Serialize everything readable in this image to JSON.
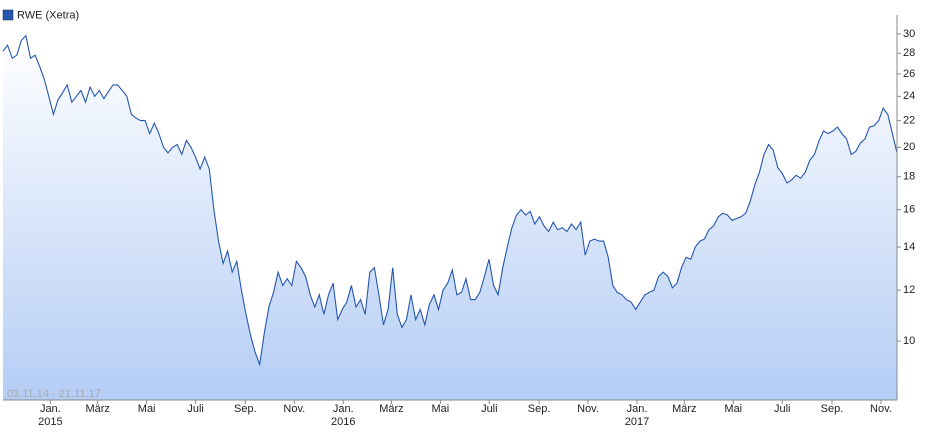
{
  "chart_data": {
    "type": "line",
    "log_scale": true,
    "range_label": "03.11.14 - 21.11.17",
    "xlim": [
      "2014-11-03",
      "2017-11-21"
    ],
    "ylim": [
      8.1,
      32.1
    ],
    "yticks": [
      10,
      12,
      14,
      16,
      18,
      20,
      22,
      24,
      26,
      28,
      30
    ],
    "xticks": [
      {
        "value": "2015-01",
        "label": "Jan."
      },
      {
        "value": "2015-03",
        "label": "März"
      },
      {
        "value": "2015-05",
        "label": "Mai"
      },
      {
        "value": "2015-07",
        "label": "Juli"
      },
      {
        "value": "2015-09",
        "label": "Sep."
      },
      {
        "value": "2015-11",
        "label": "Nov."
      },
      {
        "value": "2016-01",
        "label": "Jan."
      },
      {
        "value": "2016-03",
        "label": "März"
      },
      {
        "value": "2016-05",
        "label": "Mai"
      },
      {
        "value": "2016-07",
        "label": "Juli"
      },
      {
        "value": "2016-09",
        "label": "Sep."
      },
      {
        "value": "2016-11",
        "label": "Nov."
      },
      {
        "value": "2017-01",
        "label": "Jan."
      },
      {
        "value": "2017-03",
        "label": "März"
      },
      {
        "value": "2017-05",
        "label": "Mai"
      },
      {
        "value": "2017-07",
        "label": "Juli"
      },
      {
        "value": "2017-09",
        "label": "Sep."
      },
      {
        "value": "2017-11",
        "label": "Nov."
      }
    ],
    "xtick_years": [
      {
        "value": "2015-01",
        "label": "2015"
      },
      {
        "value": "2016-01",
        "label": "2016"
      },
      {
        "value": "2017-01",
        "label": "2017"
      }
    ],
    "series": [
      {
        "name": "RWE (Xetra)",
        "color": "#2456b0",
        "values": [
          28.2,
          28.8,
          27.5,
          27.8,
          29.3,
          29.8,
          27.5,
          27.8,
          26.7,
          25.5,
          24,
          22.5,
          23.7,
          24.3,
          25,
          23.5,
          24,
          24.5,
          23.5,
          24.8,
          24,
          24.5,
          23.8,
          24.4,
          25,
          25,
          24.5,
          24,
          22.5,
          22.2,
          22,
          22,
          21,
          21.8,
          21,
          20,
          19.6,
          20,
          20.2,
          19.5,
          20.5,
          20,
          19.3,
          18.5,
          19.3,
          18.5,
          16,
          14.3,
          13.2,
          13.8,
          12.8,
          13.3,
          12,
          11,
          10.2,
          9.6,
          9.2,
          10.3,
          11.3,
          11.9,
          12.8,
          12.2,
          12.5,
          12.2,
          13.3,
          13,
          12.6,
          11.8,
          11.3,
          11.8,
          11,
          11.8,
          12.3,
          10.8,
          11.2,
          11.5,
          12.2,
          11.3,
          11.6,
          11,
          12.8,
          13,
          11.8,
          10.6,
          11.2,
          13,
          11,
          10.5,
          10.8,
          11.8,
          10.8,
          11.2,
          10.6,
          11.4,
          11.8,
          11.2,
          12,
          12.3,
          12.9,
          11.8,
          11.9,
          12.5,
          11.6,
          11.6,
          11.9,
          12.6,
          13.4,
          12.2,
          11.8,
          13,
          14,
          15,
          15.7,
          16,
          15.7,
          15.9,
          15.2,
          15.6,
          15.1,
          14.8,
          15.3,
          14.9,
          15,
          14.8,
          15.2,
          14.9,
          15.3,
          13.6,
          14.3,
          14.4,
          14.3,
          14.3,
          13.5,
          12.2,
          11.9,
          11.8,
          11.6,
          11.5,
          11.2,
          11.5,
          11.8,
          11.9,
          12,
          12.6,
          12.8,
          12.6,
          12.1,
          12.3,
          13,
          13.5,
          13.4,
          14,
          14.3,
          14.4,
          14.9,
          15.1,
          15.6,
          15.8,
          15.7,
          15.4,
          15.5,
          15.6,
          15.8,
          16.5,
          17.5,
          18.3,
          19.5,
          20.2,
          19.8,
          18.6,
          18.2,
          17.6,
          17.8,
          18.1,
          17.9,
          18.3,
          19.1,
          19.5,
          20.5,
          21.2,
          21,
          21.2,
          21.5,
          21,
          20.6,
          19.5,
          19.7,
          20.3,
          20.6,
          21.5,
          21.6,
          22,
          23,
          22.5,
          21,
          19.6
        ]
      }
    ]
  }
}
